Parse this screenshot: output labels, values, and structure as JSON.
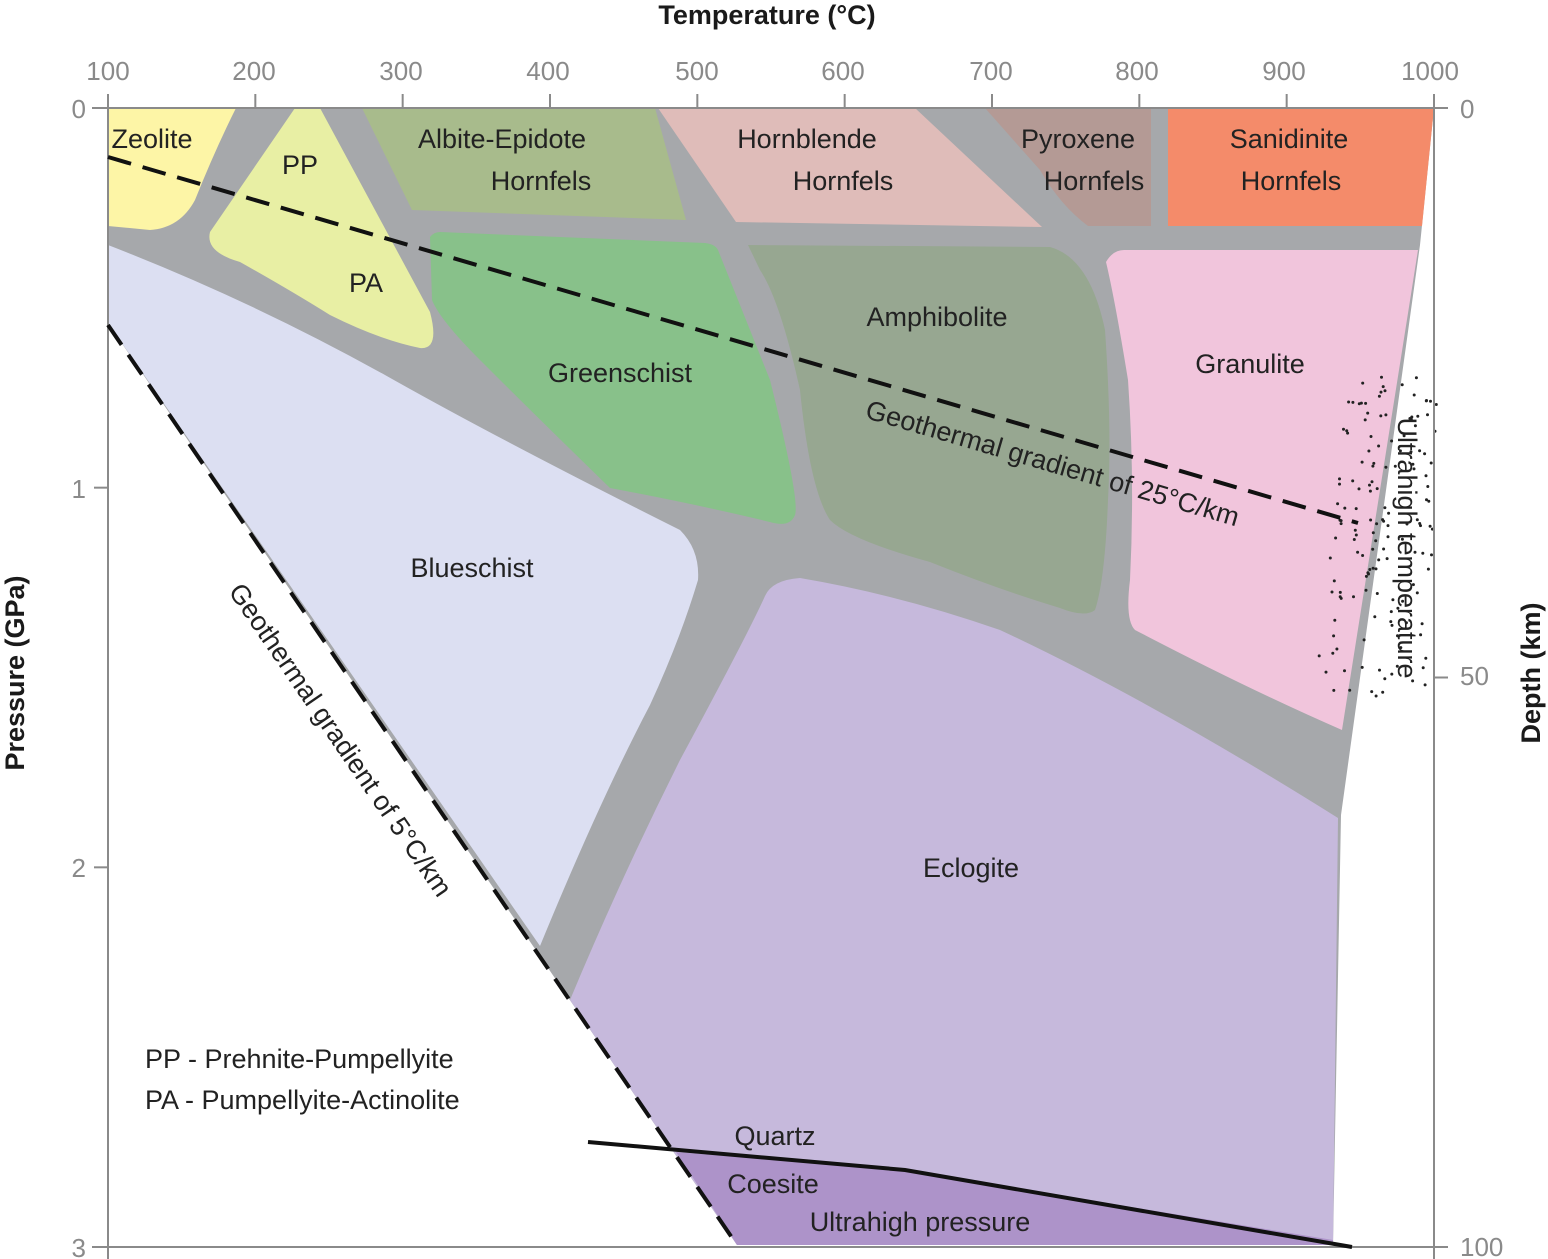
{
  "axes": {
    "top_title": "Temperature (°C)",
    "left_title": "Pressure (GPa)",
    "right_title": "Depth (km)",
    "temperature_ticks": [
      "100",
      "200",
      "300",
      "400",
      "500",
      "600",
      "700",
      "800",
      "900",
      "1000"
    ],
    "pressure_ticks": [
      "0",
      "1",
      "2",
      "3"
    ],
    "depth_ticks": [
      "0",
      "50",
      "100"
    ],
    "temperature_range": [
      100,
      1000
    ],
    "pressure_range": [
      0,
      3
    ]
  },
  "facies": {
    "zeolite": "Zeolite",
    "pp": "PP",
    "pa": "PA",
    "albite_epidote_1": "Albite-Epidote",
    "albite_epidote_2": "Hornfels",
    "hornblende_1": "Hornblende",
    "hornblende_2": "Hornfels",
    "pyroxene_1": "Pyroxene",
    "pyroxene_2": "Hornfels",
    "sanidinite_1": "Sanidinite",
    "sanidinite_2": "Hornfels",
    "greenschist": "Greenschist",
    "amphibolite": "Amphibolite",
    "granulite": "Granulite",
    "blueschist": "Blueschist",
    "eclogite": "Eclogite",
    "ultrahigh_pressure": "Ultrahigh pressure",
    "ultrahigh_temperature": "Ultrahigh temperature"
  },
  "lines": {
    "geotherm_25": "Geothermal gradient of 25°C/km",
    "geotherm_5": "Geothermal gradient of 5°C/km",
    "quartz": "Quartz",
    "coesite": "Coesite"
  },
  "legend": {
    "pp_line": "PP - Prehnite-Pumpellyite",
    "pa_line": "PA - Pumpellyite-Actinolite"
  },
  "colors": {
    "boundary_gray": "#a6a8ab",
    "zeolite": "#fdf5a6",
    "pp_pa": "#e8efa4",
    "albite_epidote": "#a8bb8c",
    "hornblende": "#dfbcb9",
    "pyroxene": "#b49a95",
    "sanidinite": "#f48b6a",
    "greenschist": "#88c18a",
    "amphibolite": "#97a791",
    "granulite": "#f1c5dc",
    "blueschist": "#dcdff2",
    "eclogite": "#c6b9dc",
    "ultrahigh_pressure": "#ad93c9"
  }
}
